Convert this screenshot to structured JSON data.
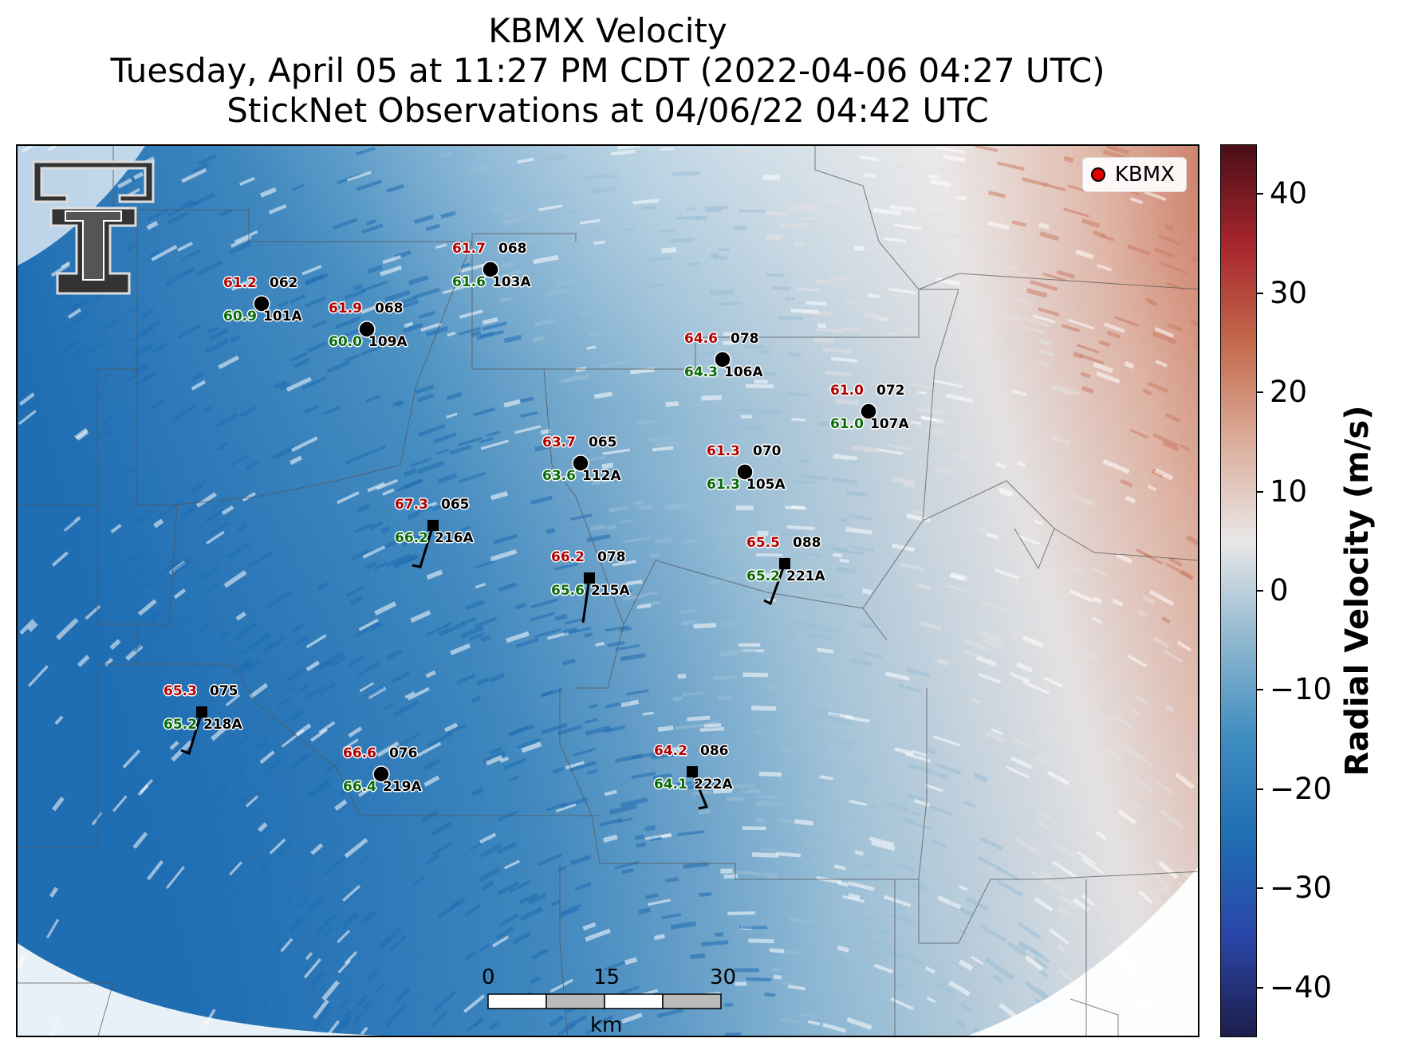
{
  "title": {
    "line1": "KBMX Velocity",
    "line2": "Tuesday, April 05 at 11:27 PM CDT (2022-04-06 04:27 UTC)",
    "line3": "StickNet Observations at 04/06/22 04:42 UTC"
  },
  "legend": {
    "label": "KBMX",
    "marker_color": "#e00000"
  },
  "stations": [
    {
      "id": "101A",
      "temp": "61.2",
      "dew": "60.9",
      "dir": "062",
      "kind": "circle"
    },
    {
      "id": "109A",
      "temp": "61.9",
      "dew": "60.0",
      "dir": "068",
      "kind": "circle"
    },
    {
      "id": "103A",
      "temp": "61.7",
      "dew": "61.6",
      "dir": "068",
      "kind": "circle"
    },
    {
      "id": "106A",
      "temp": "64.6",
      "dew": "64.3",
      "dir": "078",
      "kind": "circle"
    },
    {
      "id": "107A",
      "temp": "61.0",
      "dew": "61.0",
      "dir": "072",
      "kind": "circle"
    },
    {
      "id": "112A",
      "temp": "63.7",
      "dew": "63.6",
      "dir": "065",
      "kind": "circle"
    },
    {
      "id": "105A",
      "temp": "61.3",
      "dew": "61.3",
      "dir": "070",
      "kind": "circle"
    },
    {
      "id": "216A",
      "temp": "67.3",
      "dew": "66.2",
      "dir": "065",
      "kind": "square"
    },
    {
      "id": "215A",
      "temp": "66.2",
      "dew": "65.6",
      "dir": "078",
      "kind": "square"
    },
    {
      "id": "221A",
      "temp": "65.5",
      "dew": "65.2",
      "dir": "088",
      "kind": "square"
    },
    {
      "id": "218A",
      "temp": "65.3",
      "dew": "65.2",
      "dir": "075",
      "kind": "square"
    },
    {
      "id": "219A",
      "temp": "66.6",
      "dew": "66.4",
      "dir": "076",
      "kind": "circle"
    },
    {
      "id": "222A",
      "temp": "64.2",
      "dew": "64.1",
      "dir": "086",
      "kind": "square"
    }
  ],
  "scale_bar": {
    "labels": [
      "0",
      "15",
      "30"
    ],
    "unit": "km"
  },
  "colorbar": {
    "title": "Radial Velocity (m/s)",
    "ticks": [
      "40",
      "30",
      "20",
      "10",
      "0",
      "−10",
      "−20",
      "−30",
      "−40"
    ],
    "range": [
      -45,
      45
    ],
    "colors": [
      "#1c1e4a",
      "#2a45a8",
      "#1f6db3",
      "#3d8cc0",
      "#8fb7cf",
      "#e9e7e8",
      "#dcae9c",
      "#c46a4c",
      "#a8252d",
      "#4a0f17"
    ]
  },
  "velocity_field_colors": {
    "strong_inbound": "#1f6db3",
    "inbound": "#4a90c2",
    "weak_inbound": "#9bbfd6",
    "near_zero": "#e4e1e2",
    "weak_outbound": "#deb3a4",
    "outbound": "#cc7e65"
  }
}
